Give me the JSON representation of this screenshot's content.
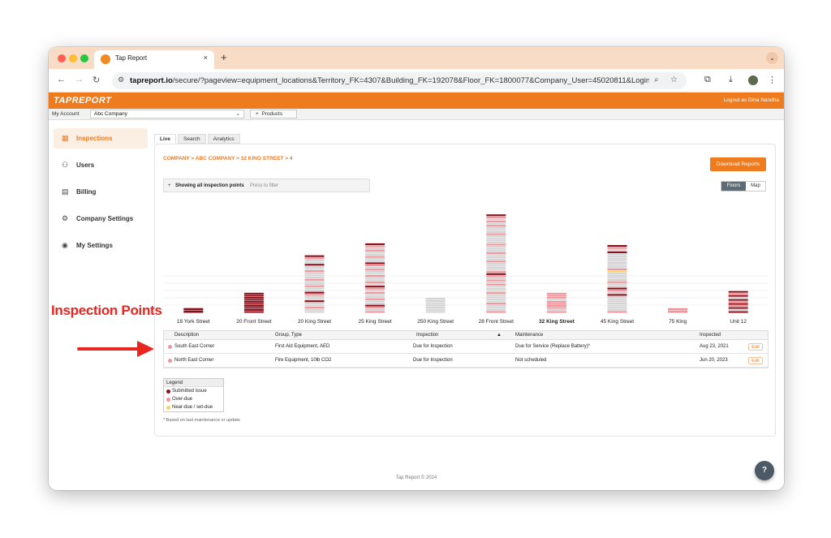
{
  "browser": {
    "tab_title": "Tap Report",
    "tab_close": "×",
    "new_tab": "+",
    "url_domain": "tapreport.io",
    "url_path": "/secure/?pageview=equipment_locations&Territory_FK=4307&Building_FK=192078&Floor_FK=1800077&Company_User=45020811&Login_..."
  },
  "app": {
    "logo": "TAPREPORT",
    "logout": "Logout as Dina Nandha",
    "my_account_label": "My Account",
    "account_selected": "Abc Company",
    "products_button": "Products"
  },
  "sidebar": {
    "items": [
      {
        "label": "Inspections",
        "icon": "clipboard-icon",
        "active": true
      },
      {
        "label": "Users",
        "icon": "users-icon"
      },
      {
        "label": "Billing",
        "icon": "document-icon"
      },
      {
        "label": "Company Settings",
        "icon": "gear-icon"
      },
      {
        "label": "My Settings",
        "icon": "user-circle-icon"
      }
    ]
  },
  "tabs": [
    "Live",
    "Search",
    "Analytics"
  ],
  "breadcrumb": "COMPANY > ABC COMPANY > 32 KING STREET > 4",
  "download_button": "Download Reports",
  "filter": {
    "plus": "+",
    "text": "Showing all inspection points",
    "hint": "Press to filter"
  },
  "view_toggle": {
    "floors": "Floors",
    "map": "Map"
  },
  "chart_data": {
    "type": "bar",
    "categories": [
      "18 York Street",
      "20 Front Street",
      "20 King Street",
      "25 King Street",
      "250 King Street",
      "28 Front Street",
      "32 King Street",
      "45 King Street",
      "75 King",
      "Unit 12"
    ],
    "selected": "32 King Street",
    "heights": [
      3,
      12,
      34,
      41,
      9,
      58,
      12,
      40,
      3,
      13
    ]
  },
  "table": {
    "headers": [
      "Description",
      "Group, Type",
      "Inspection",
      "Maintenance",
      "Inspected"
    ],
    "sort_indicator": "▲",
    "rows": [
      {
        "description": "South East Corner",
        "group": "First Aid Equipment, AED",
        "inspection": "Due for Inspection",
        "maintenance": "Due for Service (Replace Battery)*",
        "inspected": "Aug 23, 2021",
        "action": "Edit"
      },
      {
        "description": "North East Corner",
        "group": "Fire Equipment, 10lb CO2",
        "inspection": "Due for Inspection",
        "maintenance": "Not scheduled",
        "inspected": "Jun 20, 2023",
        "action": "Edit"
      }
    ]
  },
  "legend": {
    "title": "Legend",
    "items": [
      {
        "label": "Submitted issue",
        "color": "#8b0f1a"
      },
      {
        "label": "Over-due",
        "color": "#f0959b"
      },
      {
        "label": "Near-due / set-due",
        "color": "#f5d36b"
      }
    ]
  },
  "footnote": "* Based on last maintenance or update",
  "footer": "Tap Report © 2024",
  "help_button": "?",
  "annotation": {
    "label": "Inspection Points"
  },
  "colors": {
    "brand": "#ef7b1f",
    "issue": "#8b0f1a",
    "overdue": "#f0959b",
    "empty": "#d4d4d4"
  }
}
